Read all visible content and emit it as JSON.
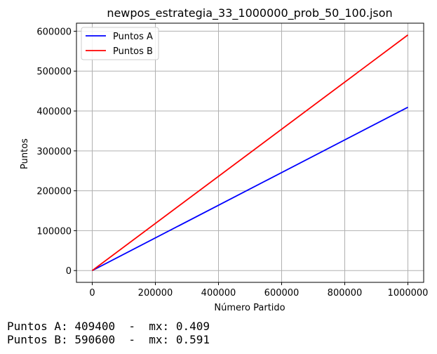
{
  "chart_data": {
    "type": "line",
    "title": "newpos_estrategia_33_1000000_prob_50_100.json",
    "xlabel": "Número Partido",
    "ylabel": "Puntos",
    "xlim": [
      -50000,
      1050000
    ],
    "ylim": [
      -29530,
      620130
    ],
    "xticks": [
      0,
      200000,
      400000,
      600000,
      800000,
      1000000
    ],
    "yticks": [
      0,
      100000,
      200000,
      300000,
      400000,
      500000,
      600000
    ],
    "grid": true,
    "legend_position": "top-left",
    "series": [
      {
        "name": "Puntos A",
        "color": "#0000ff",
        "x": [
          0,
          1000000
        ],
        "y": [
          0,
          409400
        ]
      },
      {
        "name": "Puntos B",
        "color": "#ff0000",
        "x": [
          0,
          1000000
        ],
        "y": [
          0,
          590600
        ]
      }
    ]
  },
  "footer": {
    "line_a": "Puntos A: 409400  -  mx: 0.409",
    "line_b": "Puntos B: 590600  -  mx: 0.591"
  }
}
